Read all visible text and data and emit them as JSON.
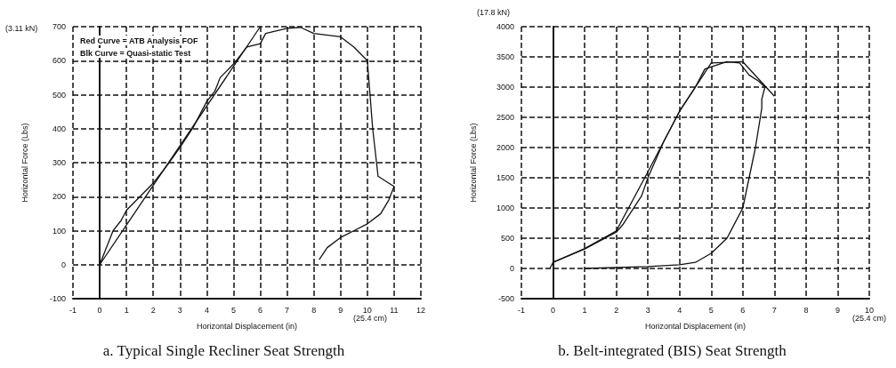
{
  "chart_data": [
    {
      "type": "line",
      "title": "a. Typical Single Recliner Seat Strength",
      "xlabel": "Horizontal Displacement (in)",
      "ylabel": "Horizontal Force (Lbs)",
      "annotations": [
        "Red Curve = ATB Analysis FOF",
        "Blk Curve = Quasi-static Test",
        "(3.11 kN)",
        "(25.4 cm)"
      ],
      "series": [
        {
          "color": "#111111",
          "x": [
            0,
            6
          ],
          "values": [
            0,
            700
          ]
        },
        {
          "color": "#111111",
          "x": [
            0,
            0.3,
            0.5,
            0.8,
            1,
            1.5,
            2,
            2.5,
            3,
            3.5,
            4,
            4.3,
            4.5,
            5,
            5.5,
            6,
            6.2,
            7,
            7.5,
            8,
            9,
            9.5,
            10,
            10.2,
            10.4,
            10.8,
            11,
            10.8,
            10.5,
            10,
            9.5,
            9,
            8.5,
            8.2
          ],
          "values": [
            0,
            60,
            100,
            130,
            160,
            200,
            240,
            290,
            345,
            405,
            480,
            510,
            550,
            590,
            640,
            650,
            680,
            695,
            698,
            680,
            670,
            640,
            600,
            400,
            260,
            240,
            230,
            190,
            150,
            120,
            100,
            80,
            50,
            15
          ]
        }
      ],
      "xlim": [
        -1,
        12
      ],
      "xticks": [
        -1,
        0,
        1,
        2,
        3,
        4,
        5,
        6,
        7,
        8,
        9,
        10,
        11,
        12
      ],
      "ylim": [
        -100,
        700
      ],
      "yticks": [
        -100,
        0,
        100,
        200,
        300,
        400,
        500,
        600,
        700
      ],
      "grid": true,
      "marker": "none",
      "line_style": "solid"
    },
    {
      "type": "line",
      "title": "b. Belt-integrated (BIS) Seat Strength",
      "xlabel": "Horizontal Displacement (in)",
      "ylabel": "Horizontal Force (Lbs)",
      "annotations": [
        "(17.8 kN)",
        "(25.4 cm)"
      ],
      "series": [
        {
          "color": "#111111",
          "x": [
            0,
            1,
            2,
            3,
            4,
            5,
            6,
            7
          ],
          "values": [
            100,
            330,
            620,
            1600,
            2600,
            3400,
            3420,
            2850
          ]
        },
        {
          "color": "#111111",
          "x": [
            -0.1,
            0,
            1,
            2,
            2.2,
            2.8,
            3,
            3.5,
            4,
            4.5,
            4.8,
            5.5,
            5.9,
            6.2,
            6.5,
            6.7,
            6.6,
            6.6,
            6.4,
            6.2,
            6,
            5.7,
            5.5,
            5,
            4.5,
            4,
            3,
            1
          ],
          "values": [
            0,
            100,
            320,
            600,
            720,
            1200,
            1500,
            2100,
            2600,
            3000,
            3300,
            3420,
            3400,
            3200,
            3100,
            3000,
            2800,
            2650,
            2000,
            1500,
            1000,
            700,
            500,
            250,
            100,
            60,
            30,
            0
          ]
        }
      ],
      "xlim": [
        -1,
        10
      ],
      "xticks": [
        -1,
        0,
        1,
        2,
        3,
        4,
        5,
        6,
        7,
        8,
        9,
        10
      ],
      "ylim": [
        -500,
        4000
      ],
      "yticks": [
        -500,
        0,
        500,
        1000,
        1500,
        2000,
        2500,
        3000,
        3500,
        4000
      ],
      "grid": true,
      "marker": "none",
      "line_style": "solid"
    }
  ]
}
